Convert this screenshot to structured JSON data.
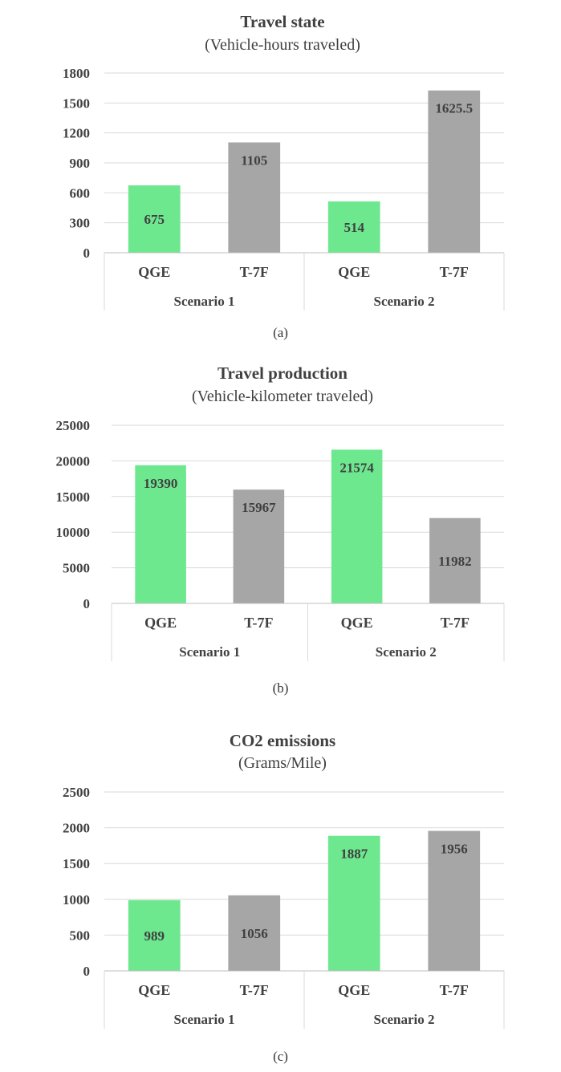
{
  "chart_data": [
    {
      "type": "bar",
      "title": "Travel state",
      "subtitle": "(Vehicle-hours traveled)",
      "caption": "(a)",
      "groups": [
        "Scenario 1",
        "Scenario 2"
      ],
      "categories": [
        "QGE",
        "T-7F",
        "QGE",
        "T-7F"
      ],
      "values": [
        675,
        1105,
        514,
        1625.5
      ],
      "value_labels": [
        "675",
        "1105",
        "514",
        "1625.5"
      ],
      "ylim": [
        0,
        1800
      ],
      "yticks": [
        0,
        300,
        600,
        900,
        1200,
        1500,
        1800
      ],
      "grid": true,
      "colors": [
        "#6ee88f",
        "#a6a6a6",
        "#6ee88f",
        "#a6a6a6"
      ]
    },
    {
      "type": "bar",
      "title": "Travel production",
      "subtitle": "(Vehicle-kilometer traveled)",
      "caption": "(b)",
      "groups": [
        "Scenario 1",
        "Scenario 2"
      ],
      "categories": [
        "QGE",
        "T-7F",
        "QGE",
        "T-7F"
      ],
      "values": [
        19390,
        15967,
        21574,
        11982
      ],
      "value_labels": [
        "19390",
        "15967",
        "21574",
        "11982"
      ],
      "ylim": [
        0,
        25000
      ],
      "yticks": [
        0,
        5000,
        10000,
        15000,
        20000,
        25000
      ],
      "grid": true,
      "colors": [
        "#6ee88f",
        "#a6a6a6",
        "#6ee88f",
        "#a6a6a6"
      ]
    },
    {
      "type": "bar",
      "title": "CO2 emissions",
      "subtitle": "(Grams/Mile)",
      "caption": "(c)",
      "groups": [
        "Scenario 1",
        "Scenario 2"
      ],
      "categories": [
        "QGE",
        "T-7F",
        "QGE",
        "T-7F"
      ],
      "values": [
        989,
        1056,
        1887,
        1956
      ],
      "value_labels": [
        "989",
        "1056",
        "1887",
        "1956"
      ],
      "ylim": [
        0,
        2500
      ],
      "yticks": [
        0,
        500,
        1000,
        1500,
        2000,
        2500
      ],
      "grid": true,
      "colors": [
        "#6ee88f",
        "#a6a6a6",
        "#6ee88f",
        "#a6a6a6"
      ]
    }
  ]
}
